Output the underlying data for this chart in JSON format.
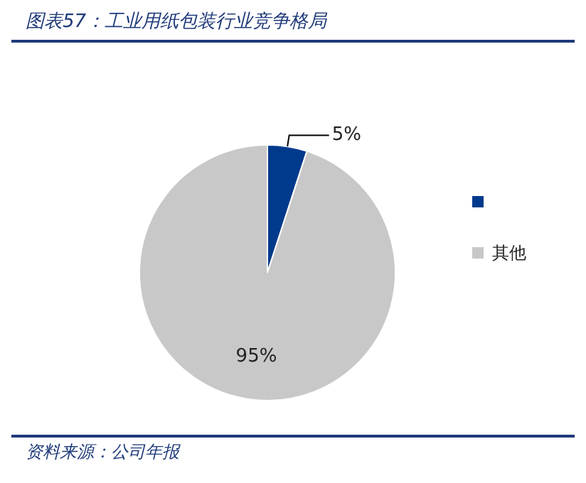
{
  "chart_data": {
    "type": "pie",
    "title": "图表57：工业用纸包装行业竞争格局",
    "categories": [
      null,
      "其他"
    ],
    "values": [
      5,
      95
    ],
    "colors": [
      "#003a8c",
      "#c8c8c8"
    ],
    "value_labels": [
      "5%",
      "95%"
    ],
    "legend": "right",
    "annotations": [
      "资料来源：公司年报"
    ]
  }
}
